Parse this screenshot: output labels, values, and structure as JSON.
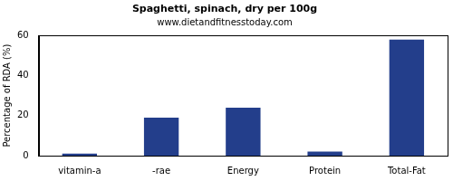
{
  "chart_data": {
    "type": "bar",
    "title": "Spaghetti, spinach, dry per 100g",
    "subtitle": "www.dietandfitnesstoday.com",
    "y_label": "Percentage of RDA (%)",
    "categories": [
      "vitamin-a",
      "-rae",
      "Energy",
      "Protein",
      "Total-Fat"
    ],
    "values": [
      1,
      19,
      24,
      2,
      58
    ],
    "color": "#233e8b",
    "ylim": [
      0,
      60
    ],
    "yticks": [
      0,
      20,
      40,
      60
    ],
    "grid": false
  }
}
